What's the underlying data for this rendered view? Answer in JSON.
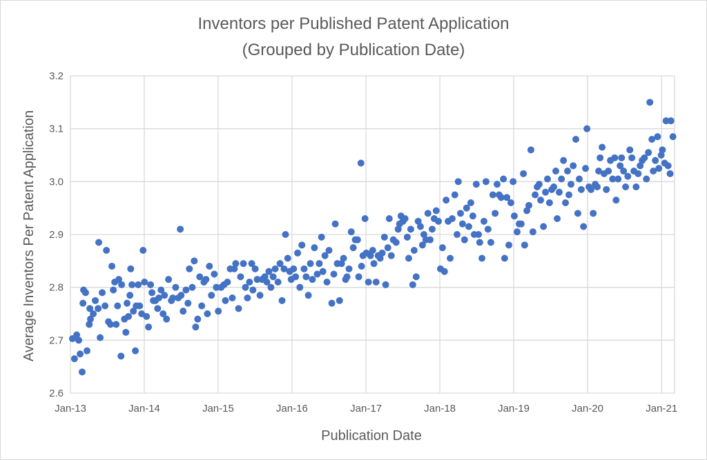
{
  "chart_data": {
    "type": "scatter",
    "title": "Inventors per Published Patent Application",
    "subtitle": "(Grouped by Publication Date)",
    "xlabel": "Publication Date",
    "ylabel": "Average Inventors Per Patent Application",
    "xlim": [
      "2013-01-01",
      "2021-03-06"
    ],
    "ylim": [
      2.6,
      3.2
    ],
    "x_ticks": [
      {
        "date": "2013-01-01",
        "label": "Jan-13"
      },
      {
        "date": "2014-01-01",
        "label": "Jan-14"
      },
      {
        "date": "2015-01-01",
        "label": "Jan-15"
      },
      {
        "date": "2016-01-01",
        "label": "Jan-16"
      },
      {
        "date": "2017-01-01",
        "label": "Jan-17"
      },
      {
        "date": "2018-01-01",
        "label": "Jan-18"
      },
      {
        "date": "2019-01-01",
        "label": "Jan-19"
      },
      {
        "date": "2020-01-01",
        "label": "Jan-20"
      },
      {
        "date": "2021-01-01",
        "label": "Jan-21"
      }
    ],
    "y_ticks": [
      {
        "value": 2.6,
        "label": "2.6"
      },
      {
        "value": 2.7,
        "label": "2.7"
      },
      {
        "value": 2.8,
        "label": "2.8"
      },
      {
        "value": 2.9,
        "label": "2.9"
      },
      {
        "value": 3.0,
        "label": "3.0"
      },
      {
        "value": 3.1,
        "label": "3.1"
      },
      {
        "value": 3.2,
        "label": "3.2"
      }
    ],
    "grid": true,
    "legend": "none",
    "marker_color": "#4472C4",
    "points": [
      [
        "2013-01-11",
        2.703
      ],
      [
        "2013-01-21",
        2.665
      ],
      [
        "2013-02-01",
        2.71
      ],
      [
        "2013-02-11",
        2.7
      ],
      [
        "2013-02-18",
        2.674
      ],
      [
        "2013-02-28",
        2.64
      ],
      [
        "2013-03-04",
        2.77
      ],
      [
        "2013-03-07",
        2.795
      ],
      [
        "2013-03-17",
        2.79
      ],
      [
        "2013-03-24",
        2.68
      ],
      [
        "2013-04-04",
        2.73
      ],
      [
        "2013-04-07",
        2.76
      ],
      [
        "2013-04-10",
        2.74
      ],
      [
        "2013-04-24",
        2.75
      ],
      [
        "2013-05-04",
        2.775
      ],
      [
        "2013-05-18",
        2.76
      ],
      [
        "2013-05-21",
        2.885
      ],
      [
        "2013-05-28",
        2.705
      ],
      [
        "2013-06-07",
        2.79
      ],
      [
        "2013-06-21",
        2.765
      ],
      [
        "2013-06-28",
        2.87
      ],
      [
        "2013-07-08",
        2.735
      ],
      [
        "2013-07-18",
        2.73
      ],
      [
        "2013-07-25",
        2.84
      ],
      [
        "2013-08-01",
        2.795
      ],
      [
        "2013-08-08",
        2.81
      ],
      [
        "2013-08-15",
        2.73
      ],
      [
        "2013-08-22",
        2.765
      ],
      [
        "2013-08-28",
        2.815
      ],
      [
        "2013-09-08",
        2.67
      ],
      [
        "2013-09-11",
        2.805
      ],
      [
        "2013-09-25",
        2.74
      ],
      [
        "2013-10-02",
        2.715
      ],
      [
        "2013-10-08",
        2.77
      ],
      [
        "2013-10-15",
        2.745
      ],
      [
        "2013-10-22",
        2.785
      ],
      [
        "2013-10-26",
        2.835
      ],
      [
        "2013-11-01",
        2.805
      ],
      [
        "2013-11-08",
        2.755
      ],
      [
        "2013-11-18",
        2.68
      ],
      [
        "2013-11-22",
        2.765
      ],
      [
        "2013-12-02",
        2.805
      ],
      [
        "2013-12-09",
        2.765
      ],
      [
        "2013-12-19",
        2.75
      ],
      [
        "2013-12-26",
        2.87
      ],
      [
        "2014-01-02",
        2.81
      ],
      [
        "2014-01-12",
        2.745
      ],
      [
        "2014-01-22",
        2.725
      ],
      [
        "2014-02-01",
        2.805
      ],
      [
        "2014-02-08",
        2.79
      ],
      [
        "2014-02-15",
        2.775
      ],
      [
        "2014-02-25",
        2.775
      ],
      [
        "2014-03-08",
        2.76
      ],
      [
        "2014-03-14",
        2.78
      ],
      [
        "2014-03-25",
        2.795
      ],
      [
        "2014-04-04",
        2.75
      ],
      [
        "2014-04-11",
        2.785
      ],
      [
        "2014-04-21",
        2.74
      ],
      [
        "2014-05-01",
        2.815
      ],
      [
        "2014-05-15",
        2.775
      ],
      [
        "2014-05-22",
        2.78
      ],
      [
        "2014-06-05",
        2.8
      ],
      [
        "2014-06-18",
        2.78
      ],
      [
        "2014-06-28",
        2.91
      ],
      [
        "2014-07-02",
        2.785
      ],
      [
        "2014-07-12",
        2.755
      ],
      [
        "2014-07-26",
        2.795
      ],
      [
        "2014-08-05",
        2.77
      ],
      [
        "2014-08-12",
        2.835
      ],
      [
        "2014-08-26",
        2.8
      ],
      [
        "2014-09-05",
        2.85
      ],
      [
        "2014-09-12",
        2.725
      ],
      [
        "2014-09-22",
        2.74
      ],
      [
        "2014-10-02",
        2.82
      ],
      [
        "2014-10-12",
        2.765
      ],
      [
        "2014-10-23",
        2.81
      ],
      [
        "2014-11-02",
        2.815
      ],
      [
        "2014-11-09",
        2.75
      ],
      [
        "2014-11-19",
        2.84
      ],
      [
        "2014-11-29",
        2.785
      ],
      [
        "2014-12-13",
        2.825
      ],
      [
        "2014-12-23",
        2.8
      ],
      [
        "2015-01-02",
        2.755
      ],
      [
        "2015-01-16",
        2.8
      ],
      [
        "2015-01-30",
        2.805
      ],
      [
        "2015-02-06",
        2.775
      ],
      [
        "2015-02-16",
        2.81
      ],
      [
        "2015-03-02",
        2.835
      ],
      [
        "2015-03-12",
        2.78
      ],
      [
        "2015-03-22",
        2.835
      ],
      [
        "2015-03-29",
        2.845
      ],
      [
        "2015-04-12",
        2.76
      ],
      [
        "2015-04-22",
        2.82
      ],
      [
        "2015-05-06",
        2.845
      ],
      [
        "2015-05-16",
        2.8
      ],
      [
        "2015-05-26",
        2.78
      ],
      [
        "2015-06-05",
        2.81
      ],
      [
        "2015-06-16",
        2.845
      ],
      [
        "2015-06-22",
        2.795
      ],
      [
        "2015-07-03",
        2.835
      ],
      [
        "2015-07-13",
        2.815
      ],
      [
        "2015-07-27",
        2.785
      ],
      [
        "2015-08-06",
        2.815
      ],
      [
        "2015-08-20",
        2.82
      ],
      [
        "2015-08-30",
        2.81
      ],
      [
        "2015-09-09",
        2.83
      ],
      [
        "2015-09-19",
        2.8
      ],
      [
        "2015-09-30",
        2.82
      ],
      [
        "2015-10-10",
        2.835
      ],
      [
        "2015-10-24",
        2.81
      ],
      [
        "2015-11-03",
        2.845
      ],
      [
        "2015-11-13",
        2.775
      ],
      [
        "2015-11-23",
        2.835
      ],
      [
        "2015-11-30",
        2.9
      ],
      [
        "2015-12-11",
        2.855
      ],
      [
        "2015-12-21",
        2.83
      ],
      [
        "2015-12-28",
        2.815
      ],
      [
        "2016-01-09",
        2.835
      ],
      [
        "2016-01-19",
        2.82
      ],
      [
        "2016-01-29",
        2.865
      ],
      [
        "2016-02-09",
        2.8
      ],
      [
        "2016-02-19",
        2.88
      ],
      [
        "2016-03-01",
        2.835
      ],
      [
        "2016-03-11",
        2.82
      ],
      [
        "2016-03-22",
        2.785
      ],
      [
        "2016-04-01",
        2.845
      ],
      [
        "2016-04-11",
        2.815
      ],
      [
        "2016-04-21",
        2.875
      ],
      [
        "2016-05-05",
        2.825
      ],
      [
        "2016-05-15",
        2.845
      ],
      [
        "2016-05-26",
        2.895
      ],
      [
        "2016-06-02",
        2.83
      ],
      [
        "2016-06-12",
        2.86
      ],
      [
        "2016-06-22",
        2.81
      ],
      [
        "2016-07-02",
        2.87
      ],
      [
        "2016-07-16",
        2.77
      ],
      [
        "2016-07-26",
        2.825
      ],
      [
        "2016-08-02",
        2.92
      ],
      [
        "2016-08-12",
        2.845
      ],
      [
        "2016-08-23",
        2.775
      ],
      [
        "2016-09-02",
        2.845
      ],
      [
        "2016-09-12",
        2.855
      ],
      [
        "2016-09-22",
        2.815
      ],
      [
        "2016-09-29",
        2.82
      ],
      [
        "2016-10-09",
        2.835
      ],
      [
        "2016-10-20",
        2.905
      ],
      [
        "2016-10-30",
        2.875
      ],
      [
        "2016-11-09",
        2.89
      ],
      [
        "2016-11-20",
        2.89
      ],
      [
        "2016-11-26",
        2.82
      ],
      [
        "2016-12-07",
        3.035
      ],
      [
        "2016-12-10",
        2.84
      ],
      [
        "2016-12-17",
        2.86
      ],
      [
        "2016-12-27",
        2.93
      ],
      [
        "2017-01-03",
        2.865
      ],
      [
        "2017-01-13",
        2.81
      ],
      [
        "2017-01-23",
        2.86
      ],
      [
        "2017-02-03",
        2.87
      ],
      [
        "2017-02-09",
        2.845
      ],
      [
        "2017-02-20",
        2.81
      ],
      [
        "2017-03-02",
        2.86
      ],
      [
        "2017-03-12",
        2.855
      ],
      [
        "2017-03-22",
        2.865
      ],
      [
        "2017-04-02",
        2.895
      ],
      [
        "2017-04-08",
        2.805
      ],
      [
        "2017-04-19",
        2.875
      ],
      [
        "2017-04-26",
        2.93
      ],
      [
        "2017-05-06",
        2.86
      ],
      [
        "2017-05-16",
        2.89
      ],
      [
        "2017-05-30",
        2.885
      ],
      [
        "2017-06-09",
        2.91
      ],
      [
        "2017-06-16",
        2.92
      ],
      [
        "2017-06-23",
        2.935
      ],
      [
        "2017-07-03",
        2.925
      ],
      [
        "2017-07-13",
        2.93
      ],
      [
        "2017-07-24",
        2.895
      ],
      [
        "2017-07-31",
        2.855
      ],
      [
        "2017-08-10",
        2.91
      ],
      [
        "2017-08-20",
        2.805
      ],
      [
        "2017-08-27",
        2.87
      ],
      [
        "2017-09-06",
        2.82
      ],
      [
        "2017-09-16",
        2.925
      ],
      [
        "2017-09-27",
        2.915
      ],
      [
        "2017-10-07",
        2.88
      ],
      [
        "2017-10-14",
        2.9
      ],
      [
        "2017-10-24",
        2.89
      ],
      [
        "2017-11-03",
        2.94
      ],
      [
        "2017-11-14",
        2.89
      ],
      [
        "2017-11-24",
        2.91
      ],
      [
        "2017-12-04",
        2.93
      ],
      [
        "2017-12-14",
        2.945
      ],
      [
        "2017-12-25",
        2.925
      ],
      [
        "2018-01-04",
        2.835
      ],
      [
        "2018-01-14",
        2.875
      ],
      [
        "2018-01-24",
        2.83
      ],
      [
        "2018-02-01",
        2.965
      ],
      [
        "2018-02-11",
        2.925
      ],
      [
        "2018-02-21",
        2.855
      ],
      [
        "2018-03-03",
        2.93
      ],
      [
        "2018-03-16",
        2.975
      ],
      [
        "2018-03-27",
        2.9
      ],
      [
        "2018-04-02",
        3.0
      ],
      [
        "2018-04-13",
        2.94
      ],
      [
        "2018-04-23",
        2.92
      ],
      [
        "2018-05-03",
        2.89
      ],
      [
        "2018-05-13",
        2.95
      ],
      [
        "2018-05-24",
        2.915
      ],
      [
        "2018-06-03",
        2.96
      ],
      [
        "2018-06-13",
        2.935
      ],
      [
        "2018-06-20",
        2.9
      ],
      [
        "2018-06-30",
        2.995
      ],
      [
        "2018-07-11",
        2.9
      ],
      [
        "2018-07-17",
        2.885
      ],
      [
        "2018-07-28",
        2.855
      ],
      [
        "2018-08-07",
        2.925
      ],
      [
        "2018-08-17",
        3.0
      ],
      [
        "2018-08-27",
        2.91
      ],
      [
        "2018-09-10",
        2.885
      ],
      [
        "2018-09-20",
        2.975
      ],
      [
        "2018-10-01",
        2.94
      ],
      [
        "2018-10-11",
        2.995
      ],
      [
        "2018-10-21",
        2.975
      ],
      [
        "2018-10-31",
        2.97
      ],
      [
        "2018-11-11",
        3.005
      ],
      [
        "2018-11-17",
        2.855
      ],
      [
        "2018-11-28",
        2.97
      ],
      [
        "2018-12-08",
        2.88
      ],
      [
        "2018-12-18",
        2.96
      ],
      [
        "2018-12-29",
        3.0
      ],
      [
        "2019-01-04",
        2.935
      ],
      [
        "2019-01-18",
        2.905
      ],
      [
        "2019-01-28",
        2.92
      ],
      [
        "2019-02-07",
        2.92
      ],
      [
        "2019-02-18",
        3.015
      ],
      [
        "2019-02-24",
        2.88
      ],
      [
        "2019-03-07",
        2.945
      ],
      [
        "2019-03-17",
        2.955
      ],
      [
        "2019-03-27",
        3.06
      ],
      [
        "2019-04-06",
        2.905
      ],
      [
        "2019-04-17",
        2.975
      ],
      [
        "2019-04-27",
        2.99
      ],
      [
        "2019-05-07",
        2.995
      ],
      [
        "2019-05-14",
        2.965
      ],
      [
        "2019-05-28",
        2.915
      ],
      [
        "2019-06-07",
        2.98
      ],
      [
        "2019-06-17",
        3.005
      ],
      [
        "2019-06-27",
        2.96
      ],
      [
        "2019-07-08",
        2.985
      ],
      [
        "2019-07-18",
        2.99
      ],
      [
        "2019-07-28",
        3.02
      ],
      [
        "2019-08-04",
        2.93
      ],
      [
        "2019-08-14",
        2.98
      ],
      [
        "2019-08-25",
        3.005
      ],
      [
        "2019-09-04",
        3.04
      ],
      [
        "2019-09-14",
        2.96
      ],
      [
        "2019-09-24",
        3.02
      ],
      [
        "2019-10-01",
        2.975
      ],
      [
        "2019-10-11",
        2.995
      ],
      [
        "2019-10-22",
        3.03
      ],
      [
        "2019-11-04",
        3.08
      ],
      [
        "2019-11-14",
        2.94
      ],
      [
        "2019-11-21",
        3.005
      ],
      [
        "2019-12-01",
        2.985
      ],
      [
        "2019-12-12",
        2.915
      ],
      [
        "2019-12-22",
        3.025
      ],
      [
        "2019-12-29",
        3.1
      ],
      [
        "2020-01-08",
        2.99
      ],
      [
        "2020-01-18",
        2.985
      ],
      [
        "2020-01-29",
        2.94
      ],
      [
        "2020-02-08",
        2.995
      ],
      [
        "2020-02-18",
        2.99
      ],
      [
        "2020-02-25",
        3.02
      ],
      [
        "2020-03-03",
        3.045
      ],
      [
        "2020-03-13",
        3.065
      ],
      [
        "2020-03-23",
        3.015
      ],
      [
        "2020-04-03",
        2.985
      ],
      [
        "2020-04-13",
        3.02
      ],
      [
        "2020-04-23",
        3.04
      ],
      [
        "2020-05-04",
        3.005
      ],
      [
        "2020-05-14",
        3.045
      ],
      [
        "2020-05-21",
        2.965
      ],
      [
        "2020-05-31",
        3.005
      ],
      [
        "2020-06-10",
        3.03
      ],
      [
        "2020-06-17",
        3.045
      ],
      [
        "2020-06-27",
        3.02
      ],
      [
        "2020-07-07",
        2.99
      ],
      [
        "2020-07-18",
        3.01
      ],
      [
        "2020-07-28",
        3.06
      ],
      [
        "2020-08-07",
        3.045
      ],
      [
        "2020-08-17",
        3.02
      ],
      [
        "2020-08-28",
        2.99
      ],
      [
        "2020-09-07",
        3.015
      ],
      [
        "2020-09-17",
        3.03
      ],
      [
        "2020-09-27",
        3.04
      ],
      [
        "2020-10-08",
        3.045
      ],
      [
        "2020-10-18",
        3.005
      ],
      [
        "2020-10-28",
        3.055
      ],
      [
        "2020-11-04",
        3.15
      ],
      [
        "2020-11-14",
        3.08
      ],
      [
        "2020-11-21",
        3.02
      ],
      [
        "2020-12-01",
        3.04
      ],
      [
        "2020-12-12",
        3.085
      ],
      [
        "2020-12-18",
        3.025
      ],
      [
        "2020-12-30",
        3.05
      ],
      [
        "2021-01-05",
        3.06
      ],
      [
        "2021-01-16",
        3.035
      ],
      [
        "2021-01-23",
        3.115
      ],
      [
        "2021-02-02",
        3.03
      ],
      [
        "2021-02-12",
        3.015
      ],
      [
        "2021-02-16",
        3.115
      ],
      [
        "2021-02-26",
        3.085
      ]
    ]
  }
}
